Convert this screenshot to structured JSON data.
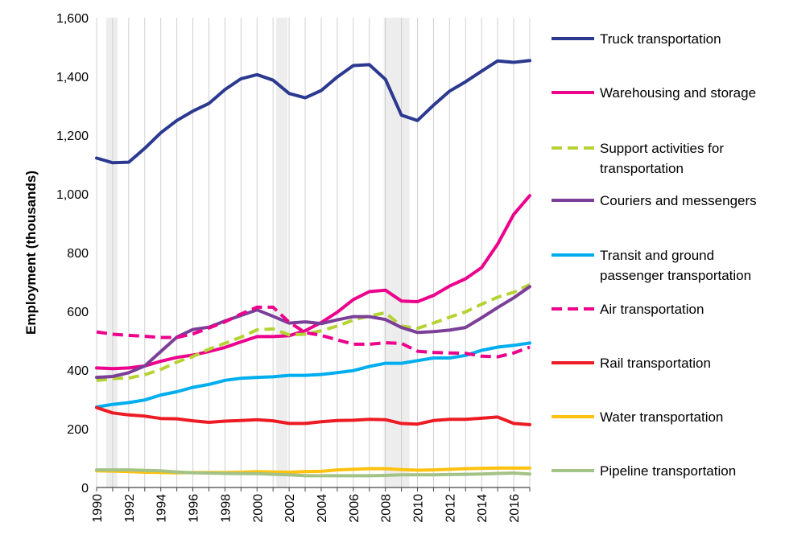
{
  "chart_data": {
    "type": "line",
    "title": "",
    "xlabel": "",
    "ylabel": "Employment (thousands)",
    "xlim": [
      1990,
      2017
    ],
    "ylim": [
      0,
      1600
    ],
    "yticks": [
      0,
      200,
      400,
      600,
      800,
      1000,
      1200,
      1400,
      1600
    ],
    "ytick_labels": [
      "0",
      "200",
      "400",
      "600",
      "800",
      "1,000",
      "1,200",
      "1,400",
      "1,600"
    ],
    "xticks": [
      1990,
      1992,
      1994,
      1996,
      1998,
      2000,
      2002,
      2004,
      2006,
      2008,
      2010,
      2012,
      2014,
      2016
    ],
    "xtick_labels": [
      "1990",
      "1992",
      "1994",
      "1996",
      "1998",
      "2000",
      "2002",
      "2004",
      "2006",
      "2008",
      "2010",
      "2012",
      "2014",
      "2016"
    ],
    "grid": "vertical",
    "legend_position": "right",
    "recession_shading": [
      {
        "start": 1990.6,
        "end": 1991.3
      },
      {
        "start": 2001.2,
        "end": 2001.9
      },
      {
        "start": 2007.9,
        "end": 2009.5
      }
    ],
    "x": [
      1990,
      1991,
      1992,
      1993,
      1994,
      1995,
      1996,
      1997,
      1998,
      1999,
      2000,
      2001,
      2002,
      2003,
      2004,
      2005,
      2006,
      2007,
      2008,
      2009,
      2010,
      2011,
      2012,
      2013,
      2014,
      2015,
      2016,
      2017
    ],
    "series": [
      {
        "name": "Truck transportation",
        "label_lines": [
          "Truck transportation"
        ],
        "color": "#2b3990",
        "dashed": false,
        "values": [
          1122,
          1106,
          1108,
          1155,
          1208,
          1250,
          1282,
          1308,
          1355,
          1392,
          1406,
          1387,
          1342,
          1327,
          1352,
          1398,
          1437,
          1440,
          1390,
          1268,
          1250,
          1302,
          1350,
          1382,
          1418,
          1453,
          1448,
          1454
        ]
      },
      {
        "name": "Warehousing and storage",
        "label_lines": [
          "Warehousing and storage"
        ],
        "color": "#ec008c",
        "dashed": false,
        "values": [
          407,
          405,
          407,
          414,
          430,
          443,
          451,
          463,
          477,
          496,
          514,
          514,
          517,
          534,
          562,
          597,
          640,
          667,
          672,
          635,
          633,
          654,
          686,
          711,
          749,
          829,
          930,
          994
        ]
      },
      {
        "name": "Support activities for transportation",
        "label_lines": [
          "Support activities for",
          "transportation"
        ],
        "color": "#b5d334",
        "dashed": true,
        "values": [
          364,
          371,
          373,
          384,
          402,
          427,
          446,
          471,
          491,
          512,
          537,
          540,
          520,
          522,
          534,
          550,
          570,
          584,
          595,
          550,
          542,
          560,
          580,
          598,
          624,
          648,
          665,
          691
        ]
      },
      {
        "name": "Couriers and messengers",
        "label_lines": [
          "Couriers and messengers"
        ],
        "color": "#7b3f98",
        "dashed": false,
        "values": [
          375,
          378,
          391,
          414,
          463,
          512,
          538,
          546,
          567,
          586,
          605,
          583,
          560,
          564,
          558,
          571,
          582,
          582,
          572,
          545,
          528,
          531,
          536,
          545,
          578,
          613,
          646,
          684
        ]
      },
      {
        "name": "Transit and ground passenger transportation",
        "label_lines": [
          "Transit and ground",
          "passenger transportation"
        ],
        "color": "#00aeef",
        "dashed": false,
        "values": [
          274,
          283,
          289,
          298,
          315,
          326,
          341,
          351,
          365,
          372,
          375,
          377,
          382,
          382,
          385,
          391,
          398,
          412,
          423,
          423,
          432,
          441,
          441,
          450,
          467,
          478,
          484,
          492
        ]
      },
      {
        "name": "Air transportation",
        "label_lines": [
          "Air transportation"
        ],
        "color": "#ec008c",
        "dashed": true,
        "values": [
          530,
          522,
          518,
          515,
          511,
          511,
          523,
          543,
          564,
          591,
          614,
          614,
          563,
          528,
          518,
          503,
          488,
          488,
          493,
          491,
          464,
          460,
          458,
          457,
          447,
          445,
          458,
          478
        ]
      },
      {
        "name": "Rail transportation",
        "label_lines": [
          "Rail transportation"
        ],
        "color": "#ed1c24",
        "dashed": false,
        "values": [
          272,
          254,
          247,
          243,
          235,
          234,
          227,
          222,
          226,
          228,
          231,
          227,
          218,
          218,
          224,
          228,
          229,
          232,
          231,
          218,
          216,
          228,
          232,
          232,
          236,
          240,
          218,
          214
        ]
      },
      {
        "name": "Water transportation",
        "label_lines": [
          "Water transportation"
        ],
        "color": "#ffc20e",
        "dashed": false,
        "values": [
          57,
          56,
          54,
          52,
          51,
          50,
          51,
          51,
          51,
          52,
          54,
          53,
          52,
          54,
          55,
          60,
          62,
          64,
          64,
          61,
          59,
          60,
          62,
          64,
          65,
          66,
          66,
          66
        ]
      },
      {
        "name": "Pipeline transportation",
        "label_lines": [
          "Pipeline transportation"
        ],
        "color": "#a3c285",
        "dashed": false,
        "values": [
          60,
          60,
          60,
          58,
          57,
          53,
          50,
          49,
          48,
          47,
          47,
          45,
          43,
          40,
          40,
          40,
          40,
          40,
          41,
          43,
          43,
          43,
          44,
          45,
          46,
          48,
          49,
          46
        ]
      }
    ]
  }
}
